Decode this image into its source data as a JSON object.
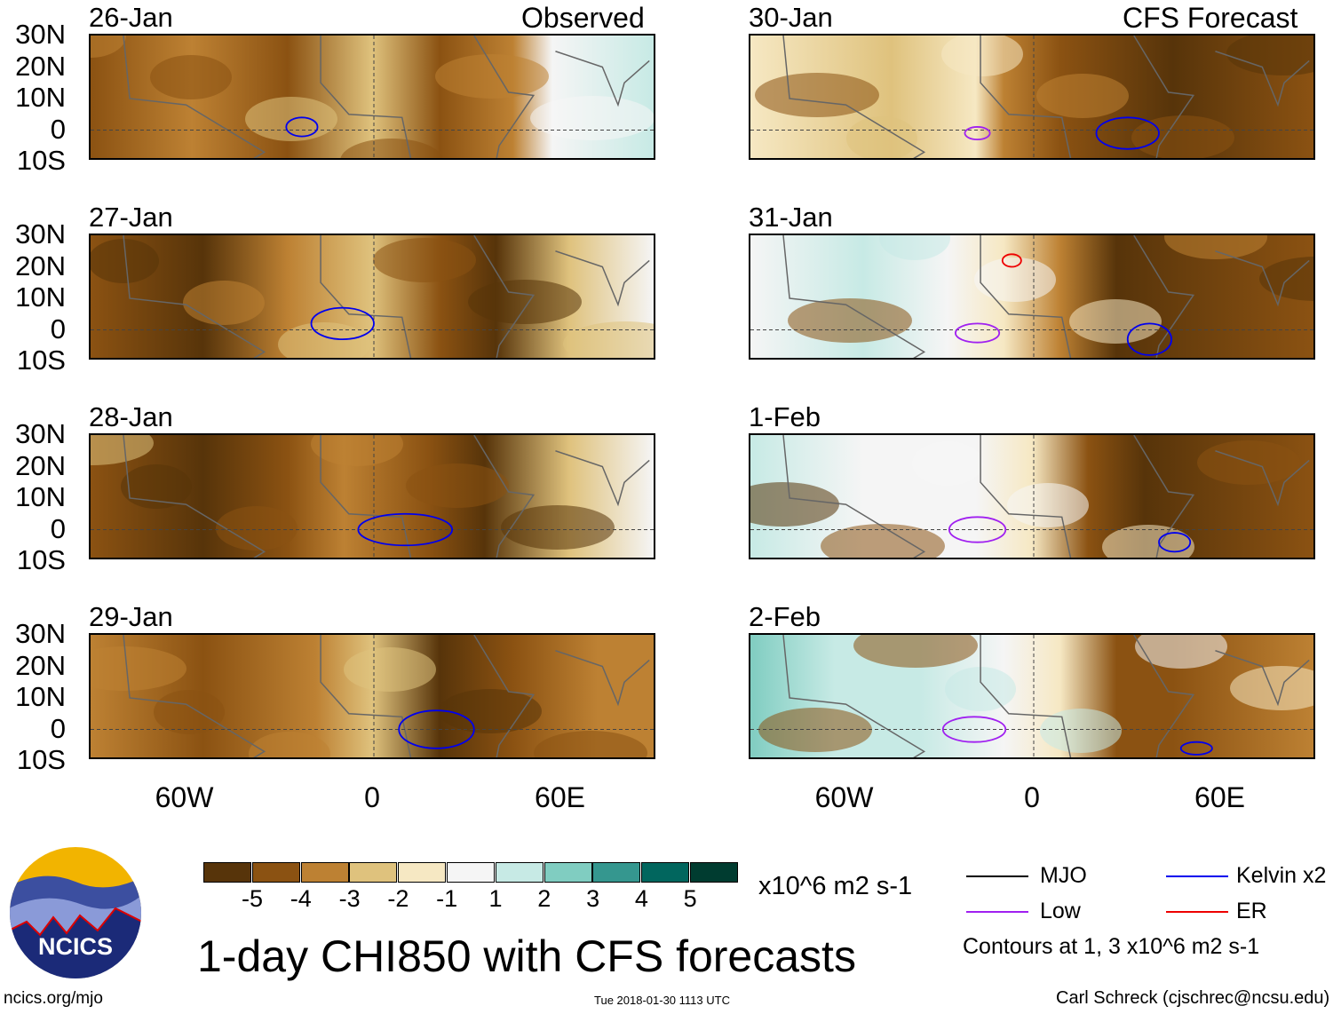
{
  "header": {
    "left_title": "Observed",
    "right_title": "CFS Forecast"
  },
  "lat_labels": [
    "30N",
    "20N",
    "10N",
    "0",
    "10S"
  ],
  "lon_labels": [
    "60W",
    "0",
    "60E"
  ],
  "panels": [
    {
      "date": "26-Jan",
      "side": "observed",
      "contours": [
        {
          "type": "Kelvin",
          "lon": -23,
          "lat": 1,
          "rlon": 5,
          "rlat": 3
        }
      ]
    },
    {
      "date": "27-Jan",
      "side": "observed",
      "contours": [
        {
          "type": "Kelvin",
          "lon": -10,
          "lat": 2,
          "rlon": 10,
          "rlat": 5
        }
      ]
    },
    {
      "date": "28-Jan",
      "side": "observed",
      "contours": [
        {
          "type": "Kelvin",
          "lon": 10,
          "lat": 0,
          "rlon": 15,
          "rlat": 5
        }
      ]
    },
    {
      "date": "29-Jan",
      "side": "observed",
      "contours": [
        {
          "type": "Kelvin",
          "lon": 20,
          "lat": 0,
          "rlon": 12,
          "rlat": 6
        }
      ]
    },
    {
      "date": "30-Jan",
      "side": "forecast",
      "contours": [
        {
          "type": "Low",
          "lon": -18,
          "lat": -1,
          "rlon": 4,
          "rlat": 2
        },
        {
          "type": "Kelvin",
          "lon": 30,
          "lat": -1,
          "rlon": 10,
          "rlat": 5
        }
      ]
    },
    {
      "date": "31-Jan",
      "side": "forecast",
      "contours": [
        {
          "type": "Low",
          "lon": -18,
          "lat": -1,
          "rlon": 7,
          "rlat": 3
        },
        {
          "type": "Kelvin",
          "lon": 37,
          "lat": -3,
          "rlon": 7,
          "rlat": 5
        },
        {
          "type": "ER",
          "lon": -7,
          "lat": 22,
          "rlon": 3,
          "rlat": 2
        }
      ]
    },
    {
      "date": "1-Feb",
      "side": "forecast",
      "contours": [
        {
          "type": "Low",
          "lon": -18,
          "lat": 0,
          "rlon": 9,
          "rlat": 4
        },
        {
          "type": "Kelvin",
          "lon": 45,
          "lat": -4,
          "rlon": 5,
          "rlat": 3
        }
      ]
    },
    {
      "date": "2-Feb",
      "side": "forecast",
      "contours": [
        {
          "type": "Low",
          "lon": -19,
          "lat": 0,
          "rlon": 10,
          "rlat": 4
        },
        {
          "type": "Kelvin",
          "lon": 52,
          "lat": -6,
          "rlon": 5,
          "rlat": 2
        }
      ]
    }
  ],
  "colorbar": {
    "levels": [
      "-5",
      "-4",
      "-3",
      "-2",
      "-1",
      "1",
      "2",
      "3",
      "4",
      "5"
    ],
    "colors": [
      "#57340a",
      "#8b5212",
      "#bd8133",
      "#dfc27d",
      "#f6e8c3",
      "#f5f5f5",
      "#c7eae5",
      "#80cdc1",
      "#35978f",
      "#01665e",
      "#003c30"
    ],
    "units": "x10^6 m2 s-1"
  },
  "legend": {
    "items": [
      {
        "label": "MJO",
        "color": "#000000"
      },
      {
        "label": "Kelvin x2",
        "color": "#0000ee"
      },
      {
        "label": "Low",
        "color": "#a020f0"
      },
      {
        "label": "ER",
        "color": "#ee0000"
      }
    ],
    "note": "Contours at 1, 3 x10^6 m2 s-1"
  },
  "footer": {
    "title": "1-day CHI850 with CFS forecasts",
    "logo_text": "NCICS",
    "url": "ncics.org/mjo",
    "timestamp": "Tue 2018-01-30 1113 UTC",
    "credit": "Carl Schreck (cjschrec@ncsu.edu)"
  }
}
